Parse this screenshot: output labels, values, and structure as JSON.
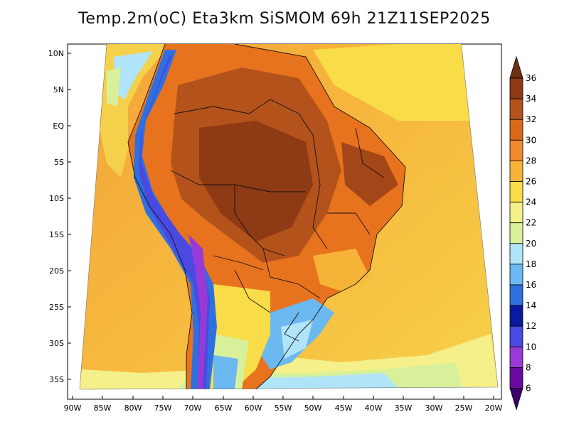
{
  "map": {
    "title": "Temp.2m(oC) Eta3km SiSMOM 69h 21Z11SEP2025",
    "lat_labels": [
      "10N",
      "5N",
      "EQ",
      "5S",
      "10S",
      "15S",
      "20S",
      "25S",
      "30S",
      "35S"
    ],
    "lon_labels": [
      "90W",
      "85W",
      "80W",
      "75W",
      "70W",
      "65W",
      "60W",
      "55W",
      "50W",
      "45W",
      "40W",
      "35W",
      "30W",
      "25W",
      "20W"
    ],
    "legend": {
      "labels": [
        "36",
        "34",
        "32",
        "30",
        "28",
        "26",
        "24",
        "22",
        "20",
        "18",
        "16",
        "14",
        "12",
        "10",
        "8",
        "6"
      ],
      "colors": [
        "#6e2f12",
        "#8e3a14",
        "#b4521c",
        "#d96a1c",
        "#f08a2c",
        "#f5b438",
        "#f8dc48",
        "#f5f08a",
        "#d8f09a",
        "#b0e4f8",
        "#6cb8f0",
        "#2f70e0",
        "#0a1aa0",
        "#4a4ae0",
        "#9a3ad6",
        "#6a0aa0",
        "#3c0070"
      ]
    }
  }
}
